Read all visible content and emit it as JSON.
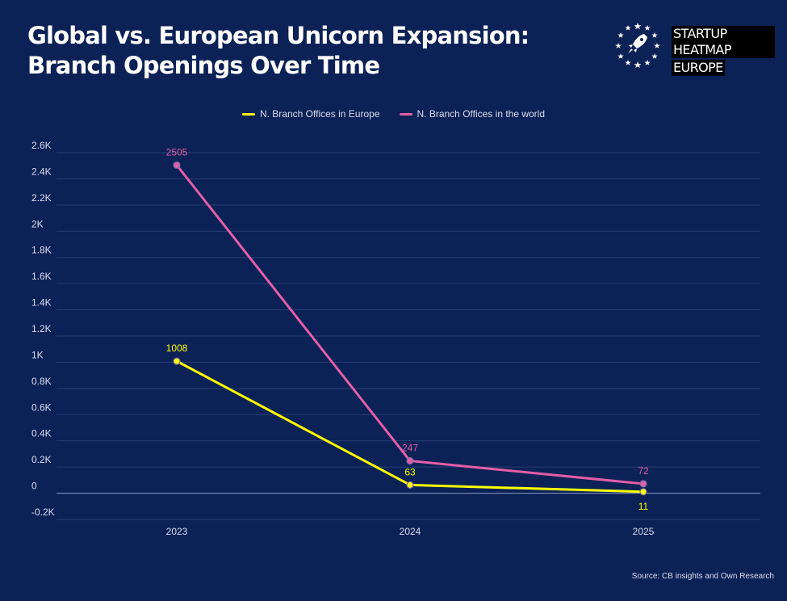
{
  "header": {
    "title": "Global vs. European Unicorn Expansion: Branch Openings Over Time",
    "logo_line1": "STARTUP HEATMAP",
    "logo_line2": "EUROPE"
  },
  "source": "Source: CB insights and Own Research",
  "colors": {
    "background": "#0c2156",
    "europe": "#ffff00",
    "world": "#e35ea8",
    "grid": "#2a3f73"
  },
  "chart_data": {
    "type": "line",
    "x": [
      "2023",
      "2024",
      "2025"
    ],
    "series": [
      {
        "name": "N. Branch Offices in Europe",
        "values": [
          1008,
          63,
          11
        ],
        "labels": [
          "1008",
          "63",
          "11"
        ],
        "color": "#ffff00"
      },
      {
        "name": "N. Branch Offices in the world",
        "values": [
          2505,
          247,
          72
        ],
        "labels": [
          "2505",
          "247",
          "72"
        ],
        "color": "#e35ea8"
      }
    ],
    "ylim": [
      -200,
      2600
    ],
    "yticks": [
      {
        "value": 2600,
        "label": "2.6K"
      },
      {
        "value": 2400,
        "label": "2.4K"
      },
      {
        "value": 2200,
        "label": "2.2K"
      },
      {
        "value": 2000,
        "label": "2K"
      },
      {
        "value": 1800,
        "label": "1.8K"
      },
      {
        "value": 1600,
        "label": "1.6K"
      },
      {
        "value": 1400,
        "label": "1.4K"
      },
      {
        "value": 1200,
        "label": "1.2K"
      },
      {
        "value": 1000,
        "label": "1K"
      },
      {
        "value": 800,
        "label": "0.8K"
      },
      {
        "value": 600,
        "label": "0.6K"
      },
      {
        "value": 400,
        "label": "0.4K"
      },
      {
        "value": 200,
        "label": "0.2K"
      },
      {
        "value": 0,
        "label": "0"
      },
      {
        "value": -200,
        "label": "-0.2K"
      }
    ],
    "grid": true,
    "legend": "top-center"
  }
}
